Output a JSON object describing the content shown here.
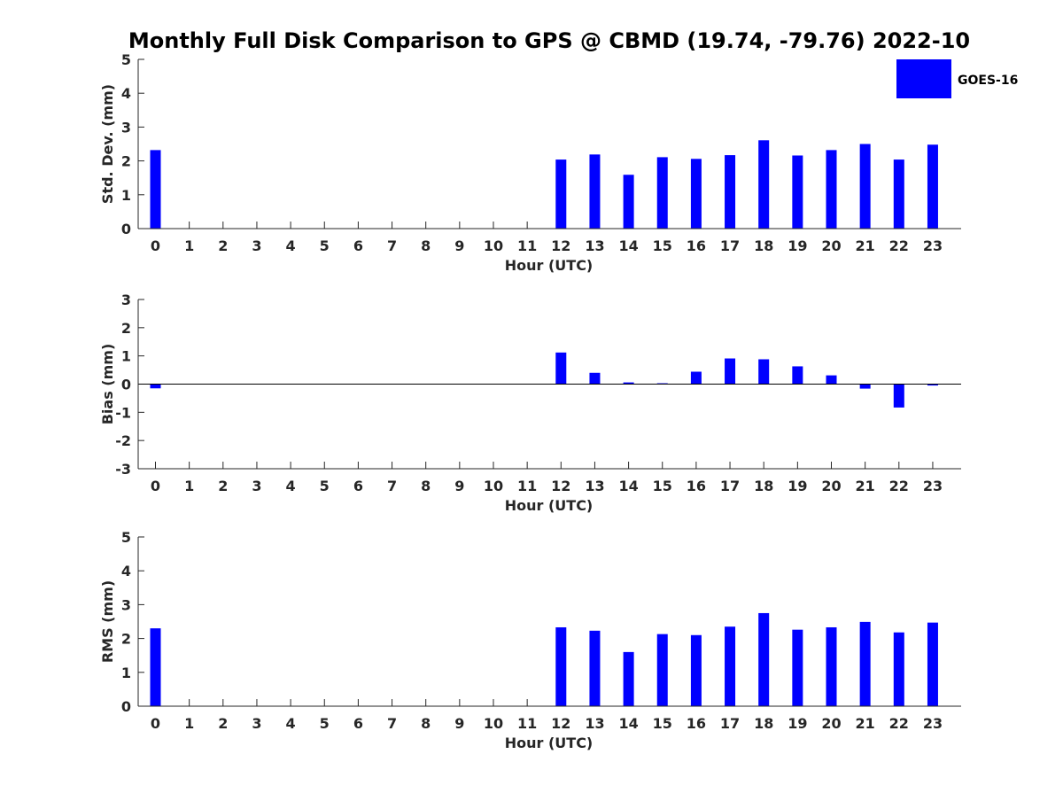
{
  "title": "Monthly Full Disk Comparison to GPS @ CBMD (19.74, -79.76) 2022-10",
  "legend": {
    "label": "GOES-16",
    "color": "#0000ff",
    "placement": "top-right"
  },
  "chart_data": [
    {
      "type": "bar",
      "categories": [
        "0",
        "1",
        "2",
        "3",
        "4",
        "5",
        "6",
        "7",
        "8",
        "9",
        "10",
        "11",
        "12",
        "13",
        "14",
        "15",
        "16",
        "17",
        "18",
        "19",
        "20",
        "21",
        "22",
        "23"
      ],
      "series": [
        {
          "name": "GOES-16",
          "values": [
            2.32,
            0,
            0,
            0,
            0,
            0,
            0,
            0,
            0,
            0,
            0,
            0,
            2.04,
            2.19,
            1.59,
            2.11,
            2.06,
            2.17,
            2.61,
            2.16,
            2.32,
            2.5,
            2.04,
            2.48
          ]
        }
      ],
      "xlabel": "Hour (UTC)",
      "ylabel": "Std. Dev. (mm)",
      "ylim": [
        0,
        5
      ],
      "yticks": [
        0,
        1,
        2,
        3,
        4,
        5
      ],
      "grid": false
    },
    {
      "type": "bar",
      "categories": [
        "0",
        "1",
        "2",
        "3",
        "4",
        "5",
        "6",
        "7",
        "8",
        "9",
        "10",
        "11",
        "12",
        "13",
        "14",
        "15",
        "16",
        "17",
        "18",
        "19",
        "20",
        "21",
        "22",
        "23"
      ],
      "series": [
        {
          "name": "GOES-16",
          "values": [
            -0.15,
            0,
            0,
            0,
            0,
            0,
            0,
            0,
            0,
            0,
            0,
            0,
            1.12,
            0.4,
            0.06,
            0.03,
            0.44,
            0.91,
            0.88,
            0.63,
            0.31,
            -0.16,
            -0.83,
            -0.05
          ]
        }
      ],
      "xlabel": "Hour (UTC)",
      "ylabel": "Bias (mm)",
      "ylim": [
        -3,
        3
      ],
      "yticks": [
        -3,
        -2,
        -1,
        0,
        1,
        2,
        3
      ],
      "grid": false
    },
    {
      "type": "bar",
      "categories": [
        "0",
        "1",
        "2",
        "3",
        "4",
        "5",
        "6",
        "7",
        "8",
        "9",
        "10",
        "11",
        "12",
        "13",
        "14",
        "15",
        "16",
        "17",
        "18",
        "19",
        "20",
        "21",
        "22",
        "23"
      ],
      "series": [
        {
          "name": "GOES-16",
          "values": [
            2.3,
            0,
            0,
            0,
            0,
            0,
            0,
            0,
            0,
            0,
            0,
            0,
            2.33,
            2.23,
            1.6,
            2.13,
            2.1,
            2.35,
            2.75,
            2.26,
            2.33,
            2.49,
            2.18,
            2.47
          ]
        }
      ],
      "xlabel": "Hour (UTC)",
      "ylabel": "RMS (mm)",
      "ylim": [
        0,
        5
      ],
      "yticks": [
        0,
        1,
        2,
        3,
        4,
        5
      ],
      "grid": false
    }
  ]
}
